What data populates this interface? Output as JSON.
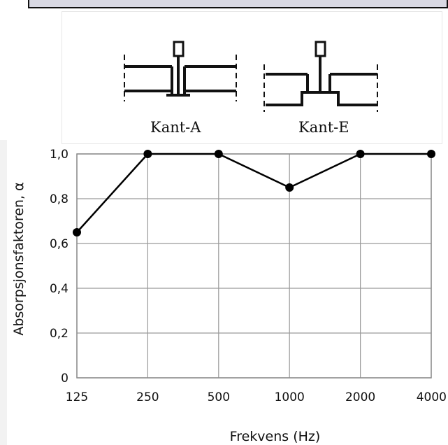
{
  "chart_data": {
    "type": "line",
    "x": [
      "125",
      "250",
      "500",
      "1000",
      "2000",
      "4000"
    ],
    "series": [
      {
        "values": [
          0.65,
          1.0,
          1.0,
          0.85,
          1.0,
          1.0
        ]
      }
    ],
    "xlabel": "Frekvens (Hz)",
    "ylabel": "Absorpsjonsfaktoren, α",
    "ylim": [
      0,
      1.0
    ],
    "yticks": [
      "0",
      "0,2",
      "0,4",
      "0,6",
      "0,8",
      "1,0"
    ],
    "grid": true,
    "marker": "filled-circle",
    "line_color": "#000000"
  },
  "edge_profiles": [
    {
      "label": "Kant-A"
    },
    {
      "label": "Kant-E"
    }
  ]
}
